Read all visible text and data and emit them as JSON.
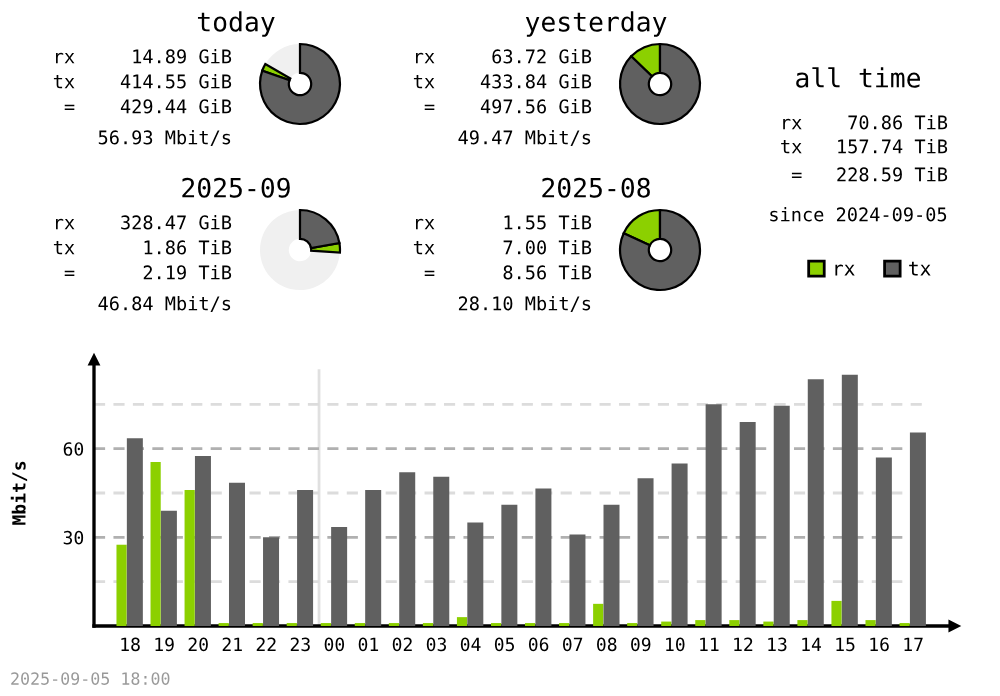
{
  "chart_data": [
    {
      "type": "donut",
      "title": "today",
      "categories": [
        null,
        "rx",
        "tx"
      ],
      "values": [
        16.7,
        2.9,
        80.4
      ],
      "colors": [
        "#f0f0f0",
        "#8cd000",
        "#606060"
      ],
      "legend": "right",
      "annotations": [
        "rx     14.89 GiB",
        "tx    414.55 GiB",
        "=    429.44 GiB",
        "56.93 Mbit/s"
      ]
    },
    {
      "type": "donut",
      "title": "yesterday",
      "categories": [
        null,
        null
      ],
      "values": [
        12.8,
        87.2
      ],
      "colors": [
        "#8cd000",
        "#606060"
      ],
      "annotations": [
        "rx     63.72 GiB",
        "tx    433.84 GiB",
        "=    497.56 GiB",
        "49.47 Mbit/s"
      ]
    },
    {
      "type": "donut",
      "title": "2025-09",
      "categories": [
        null,
        null,
        null
      ],
      "values": [
        74.0,
        3.8,
        22.2
      ],
      "colors": [
        "#f0f0f0",
        "#8cd000",
        "#606060"
      ],
      "annotations": [
        "rx    328.47 GiB",
        "tx      1.86 TiB",
        "=      2.19 TiB",
        "46.84 Mbit/s"
      ]
    },
    {
      "type": "donut",
      "title": "2025-08",
      "categories": [
        null,
        null
      ],
      "values": [
        18.1,
        81.9
      ],
      "colors": [
        "#8cd000",
        "#606060"
      ],
      "annotations": [
        "rx      1.55 TiB",
        "tx      7.00 TiB",
        "=      8.56 TiB",
        "28.10 Mbit/s"
      ]
    },
    {
      "type": "other",
      "title": "all time",
      "annotations": [
        "rx    70.86 TiB",
        "tx   157.74 TiB",
        "=   228.59 TiB",
        "since 2024-09-05"
      ]
    },
    {
      "type": "bar",
      "ylabel": "Mbit/s",
      "categories": [
        "18",
        "19",
        "20",
        "21",
        "22",
        "23",
        "00",
        "01",
        "02",
        "03",
        "04",
        "05",
        "06",
        "07",
        "08",
        "09",
        "10",
        "11",
        "12",
        "13",
        "14",
        "15",
        "16",
        "17"
      ],
      "series": [
        {
          "color": "#8cd000",
          "values": [
            27.5,
            55.5,
            46,
            1,
            1,
            1,
            1,
            1,
            1,
            1,
            3,
            1,
            1,
            1,
            7.5,
            1,
            1.5,
            2,
            2,
            1.5,
            2,
            8.5,
            2,
            1
          ]
        },
        {
          "color": "#606060",
          "values": [
            63.5,
            39,
            57.5,
            48.5,
            30,
            46,
            33.5,
            46,
            52,
            50.5,
            35,
            41,
            46.5,
            31,
            41,
            50,
            55,
            75,
            69,
            74.5,
            83.5,
            85,
            57,
            65.5
          ]
        }
      ],
      "ylim": [
        0,
        90
      ],
      "yticks": [
        {
          "value": 15,
          "label": null
        },
        30,
        {
          "value": 45,
          "label": null
        },
        60,
        {
          "value": 75,
          "label": null
        }
      ],
      "grid": "y",
      "ref_lines": [
        {
          "axis": "x",
          "value": "00",
          "color": "#e0e0e0"
        }
      ],
      "annotations": [
        "2025-09-05 18:00"
      ]
    }
  ]
}
